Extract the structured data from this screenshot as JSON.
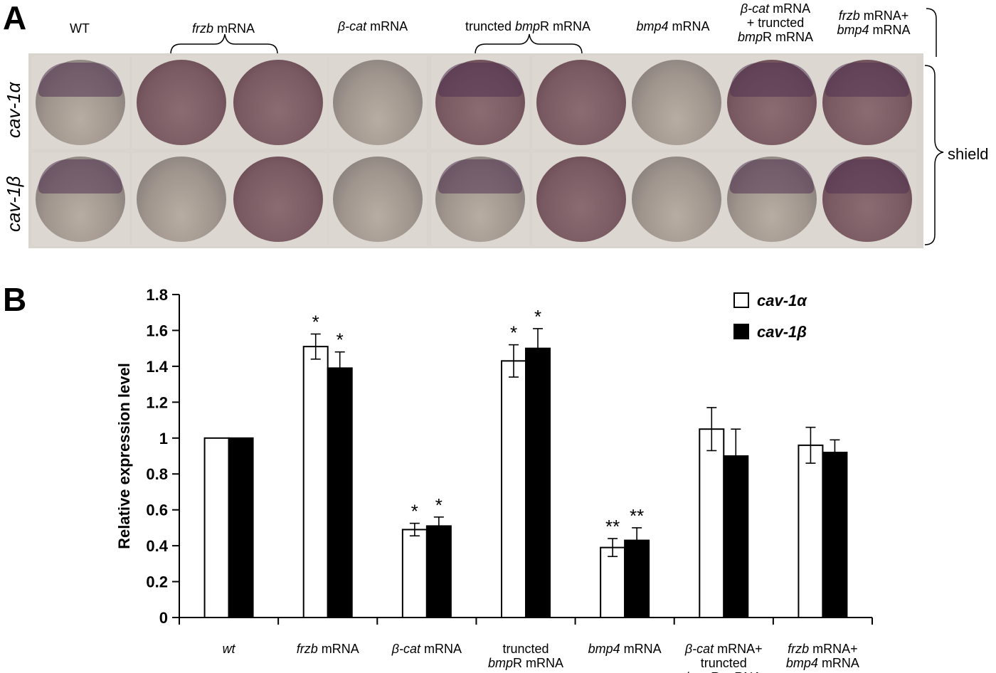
{
  "panel_a": {
    "letter": "A",
    "column_labels": [
      {
        "parts": [
          {
            "t": "WT",
            "i": false
          }
        ]
      },
      {
        "parts": [
          {
            "t": "frzb",
            "i": true
          },
          {
            "t": " mRNA",
            "i": false
          }
        ]
      },
      {
        "parts": [
          {
            "t": "β-cat",
            "i": true
          },
          {
            "t": " mRNA",
            "i": false
          }
        ]
      },
      {
        "parts": [
          {
            "t": "truncted ",
            "i": false
          },
          {
            "t": "bmp",
            "i": true
          },
          {
            "t": "R mRNA",
            "i": false
          }
        ]
      },
      {
        "parts": [
          {
            "t": "bmp4",
            "i": true
          },
          {
            "t": " mRNA",
            "i": false
          }
        ]
      },
      {
        "lines": [
          [
            {
              "t": "β-cat",
              "i": true
            },
            {
              "t": " mRNA",
              "i": false
            }
          ],
          [
            {
              "t": "+ truncted",
              "i": false
            }
          ],
          [
            {
              "t": "bmp",
              "i": true
            },
            {
              "t": "R mRNA",
              "i": false
            }
          ]
        ]
      },
      {
        "lines": [
          [
            {
              "t": "frzb",
              "i": true
            },
            {
              "t": " mRNA+",
              "i": false
            }
          ],
          [
            {
              "t": "bmp4",
              "i": true
            },
            {
              "t": " mRNA",
              "i": false
            }
          ]
        ]
      }
    ],
    "row_labels": [
      "cav-1α",
      "cav-1β"
    ],
    "stage_label": "shield"
  },
  "panel_b": {
    "letter": "B"
  },
  "chart_data": {
    "type": "bar",
    "ylabel": "Relative expression level",
    "ylim": [
      0,
      1.8
    ],
    "yticks": [
      "0",
      "0.2",
      "0.4",
      "0.6",
      "0.8",
      "1",
      "1.2",
      "1.4",
      "1.6",
      "1.8"
    ],
    "categories": [
      {
        "lines": [
          [
            {
              "t": "wt",
              "i": true
            }
          ]
        ]
      },
      {
        "lines": [
          [
            {
              "t": "frzb",
              "i": true
            },
            {
              "t": " mRNA",
              "i": false
            }
          ]
        ]
      },
      {
        "lines": [
          [
            {
              "t": "β-cat",
              "i": true
            },
            {
              "t": " mRNA",
              "i": false
            }
          ]
        ]
      },
      {
        "lines": [
          [
            {
              "t": "truncted",
              "i": false
            }
          ],
          [
            {
              "t": "bmp",
              "i": true
            },
            {
              "t": "R mRNA",
              "i": false
            }
          ]
        ]
      },
      {
        "lines": [
          [
            {
              "t": "bmp4",
              "i": true
            },
            {
              "t": " mRNA",
              "i": false
            }
          ]
        ]
      },
      {
        "lines": [
          [
            {
              "t": "β-cat",
              "i": true
            },
            {
              "t": " mRNA+",
              "i": false
            }
          ],
          [
            {
              "t": "truncted",
              "i": false
            }
          ],
          [
            {
              "t": "bmp",
              "i": true
            },
            {
              "t": "R mRNA",
              "i": false
            }
          ]
        ]
      },
      {
        "lines": [
          [
            {
              "t": "frzb",
              "i": true
            },
            {
              "t": " mRNA+",
              "i": false
            }
          ],
          [
            {
              "t": "bmp4",
              "i": true
            },
            {
              "t": " mRNA",
              "i": false
            }
          ]
        ]
      }
    ],
    "series": [
      {
        "name": "cav-1α",
        "color": "#ffffff",
        "values": [
          1.0,
          1.51,
          0.49,
          1.43,
          0.39,
          1.05,
          0.96
        ],
        "errors": [
          0,
          0.07,
          0.035,
          0.09,
          0.05,
          0.12,
          0.1
        ],
        "sig": [
          "",
          "*",
          "*",
          "*",
          "**",
          "",
          ""
        ]
      },
      {
        "name": "cav-1β",
        "color": "#000000",
        "values": [
          1.0,
          1.39,
          0.51,
          1.5,
          0.43,
          0.9,
          0.92
        ],
        "errors": [
          0,
          0.09,
          0.05,
          0.11,
          0.07,
          0.15,
          0.07
        ],
        "sig": [
          "",
          "*",
          "*",
          "*",
          "**",
          "",
          ""
        ]
      }
    ],
    "legend_position": "top-right",
    "grid": false
  }
}
